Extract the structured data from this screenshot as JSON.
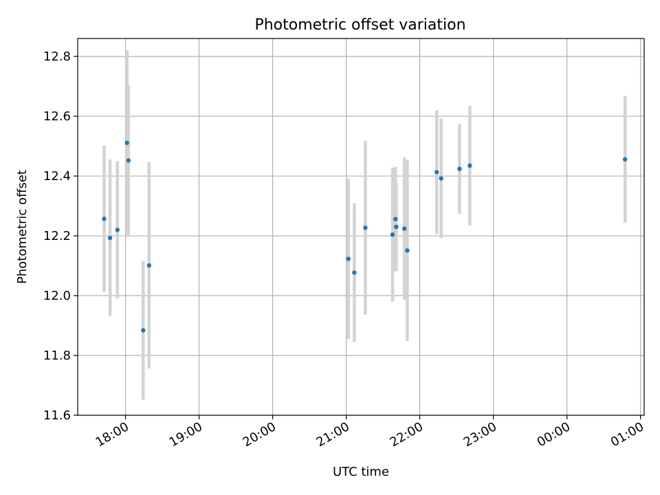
{
  "chart_data": {
    "type": "scatter",
    "title": "Photometric offset variation",
    "xlabel": "UTC time",
    "ylabel": "Photometric offset",
    "x_unit": "hours since 18:00 UTC",
    "xlim": [
      -0.65,
      7.05
    ],
    "ylim": [
      11.6,
      12.86
    ],
    "xticks": [
      {
        "value": 0,
        "label": "18:00"
      },
      {
        "value": 1,
        "label": "19:00"
      },
      {
        "value": 2,
        "label": "20:00"
      },
      {
        "value": 3,
        "label": "21:00"
      },
      {
        "value": 4,
        "label": "22:00"
      },
      {
        "value": 5,
        "label": "23:00"
      },
      {
        "value": 6,
        "label": "00:00"
      },
      {
        "value": 7,
        "label": "01:00"
      }
    ],
    "yticks": [
      {
        "value": 11.6,
        "label": "11.6"
      },
      {
        "value": 11.8,
        "label": "11.8"
      },
      {
        "value": 12.0,
        "label": "12.0"
      },
      {
        "value": 12.2,
        "label": "12.2"
      },
      {
        "value": 12.4,
        "label": "12.4"
      },
      {
        "value": 12.6,
        "label": "12.6"
      },
      {
        "value": 12.8,
        "label": "12.8"
      }
    ],
    "grid": true,
    "point_color": "#1f77b4",
    "errorbar_color": "#d3d3d3",
    "points": [
      {
        "x": -0.29,
        "y": 12.257,
        "err": 0.245
      },
      {
        "x": -0.21,
        "y": 12.193,
        "err": 0.262
      },
      {
        "x": -0.11,
        "y": 12.22,
        "err": 0.23
      },
      {
        "x": 0.02,
        "y": 12.511,
        "err": 0.31
      },
      {
        "x": 0.04,
        "y": 12.452,
        "err": 0.252
      },
      {
        "x": 0.24,
        "y": 11.884,
        "err": 0.232
      },
      {
        "x": 0.32,
        "y": 12.101,
        "err": 0.345
      },
      {
        "x": 3.03,
        "y": 12.123,
        "err": 0.268
      },
      {
        "x": 3.11,
        "y": 12.077,
        "err": 0.232
      },
      {
        "x": 3.26,
        "y": 12.227,
        "err": 0.291
      },
      {
        "x": 3.63,
        "y": 12.204,
        "err": 0.224
      },
      {
        "x": 3.67,
        "y": 12.256,
        "err": 0.175
      },
      {
        "x": 3.68,
        "y": 12.23,
        "err": 0.148
      },
      {
        "x": 3.79,
        "y": 12.224,
        "err": 0.238
      },
      {
        "x": 3.83,
        "y": 12.151,
        "err": 0.303
      },
      {
        "x": 4.23,
        "y": 12.413,
        "err": 0.207
      },
      {
        "x": 4.29,
        "y": 12.392,
        "err": 0.2
      },
      {
        "x": 4.54,
        "y": 12.424,
        "err": 0.15
      },
      {
        "x": 4.68,
        "y": 12.435,
        "err": 0.2
      },
      {
        "x": 6.79,
        "y": 12.456,
        "err": 0.212
      }
    ]
  }
}
